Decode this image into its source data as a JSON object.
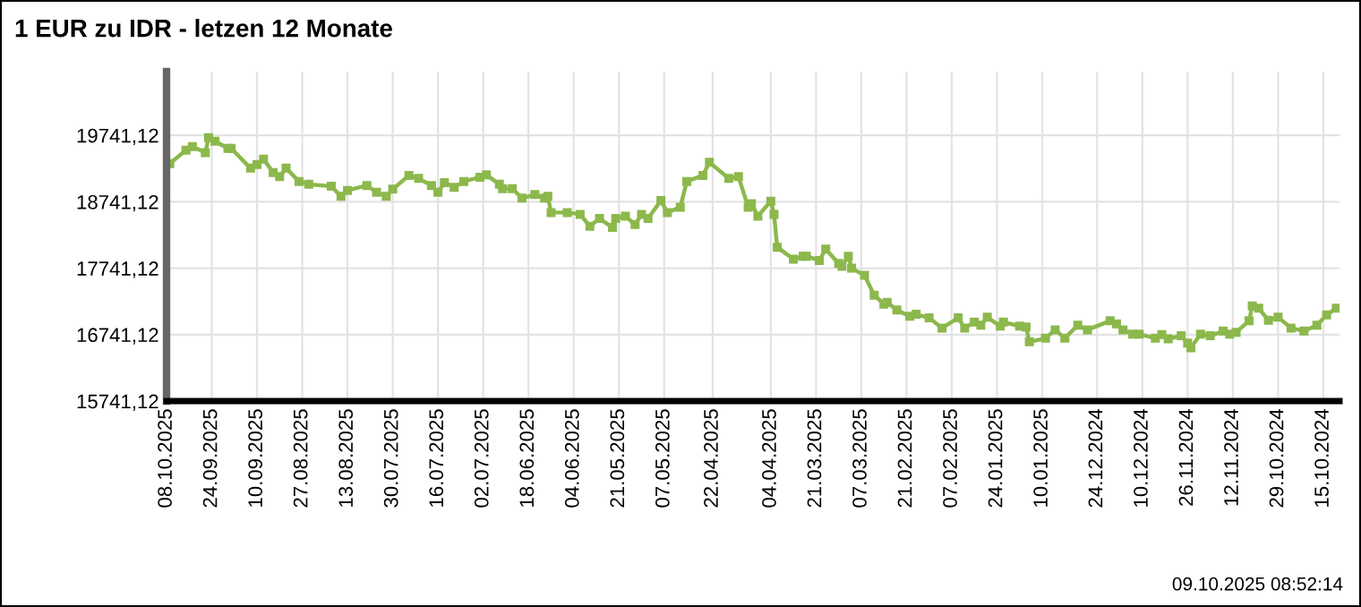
{
  "chart_data": {
    "type": "line",
    "title": "1 EUR zu IDR - letzen 12 Monate",
    "annotations": [
      "09.10.2025 08:52:14"
    ],
    "series": [
      {
        "color": "#8cb84c",
        "x": [
          "2025-10-07",
          "2025-10-02",
          "2025-09-30",
          "2025-09-26",
          "2025-09-25",
          "2025-09-23",
          "2025-09-19",
          "2025-09-18",
          "2025-09-12",
          "2025-09-10",
          "2025-09-08",
          "2025-09-05",
          "2025-09-03",
          "2025-09-01",
          "2025-08-28",
          "2025-08-25",
          "2025-08-18",
          "2025-08-15",
          "2025-08-13",
          "2025-08-07",
          "2025-08-04",
          "2025-08-01",
          "2025-07-30",
          "2025-07-25",
          "2025-07-22",
          "2025-07-18",
          "2025-07-16",
          "2025-07-14",
          "2025-07-11",
          "2025-07-08",
          "2025-07-03",
          "2025-07-01",
          "2025-06-27",
          "2025-06-26",
          "2025-06-23",
          "2025-06-20",
          "2025-06-16",
          "2025-06-13",
          "2025-06-12",
          "2025-06-11",
          "2025-06-06",
          "2025-06-02",
          "2025-05-30",
          "2025-05-27",
          "2025-05-23",
          "2025-05-22",
          "2025-05-19",
          "2025-05-16",
          "2025-05-14",
          "2025-05-12",
          "2025-05-08",
          "2025-05-06",
          "2025-05-02",
          "2025-04-30",
          "2025-04-25",
          "2025-04-23",
          "2025-04-17",
          "2025-04-14",
          "2025-04-11",
          "2025-04-10",
          "2025-04-08",
          "2025-04-04",
          "2025-04-03",
          "2025-04-02",
          "2025-03-28",
          "2025-03-25",
          "2025-03-24",
          "2025-03-20",
          "2025-03-18",
          "2025-03-14",
          "2025-03-13",
          "2025-03-11",
          "2025-03-10",
          "2025-03-06",
          "2025-03-03",
          "2025-02-28",
          "2025-02-27",
          "2025-02-24",
          "2025-02-20",
          "2025-02-18",
          "2025-02-14",
          "2025-02-10",
          "2025-02-05",
          "2025-02-03",
          "2025-01-31",
          "2025-01-29",
          "2025-01-27",
          "2025-01-23",
          "2025-01-22",
          "2025-01-17",
          "2025-01-15",
          "2025-01-14",
          "2025-01-09",
          "2025-01-06",
          "2025-01-03",
          "2024-12-30",
          "2024-12-27",
          "2024-12-20",
          "2024-12-18",
          "2024-12-16",
          "2024-12-13",
          "2024-12-11",
          "2024-12-06",
          "2024-12-04",
          "2024-12-02",
          "2024-11-28",
          "2024-11-26",
          "2024-11-25",
          "2024-11-22",
          "2024-11-19",
          "2024-11-15",
          "2024-11-13",
          "2024-11-11",
          "2024-11-07",
          "2024-11-06",
          "2024-11-04",
          "2024-11-01",
          "2024-10-29",
          "2024-10-25",
          "2024-10-21",
          "2024-10-17",
          "2024-10-14",
          "2024-10-11"
        ],
        "values": [
          19317,
          19517,
          19571,
          19479,
          19706,
          19652,
          19544,
          19544,
          19247,
          19301,
          19382,
          19182,
          19119,
          19247,
          19047,
          19004,
          18976,
          18822,
          18912,
          18986,
          18884,
          18822,
          18930,
          19138,
          19092,
          18986,
          18884,
          19030,
          18957,
          19047,
          19111,
          19146,
          19004,
          18939,
          18939,
          18795,
          18849,
          18795,
          18822,
          18579,
          18579,
          18552,
          18371,
          18489,
          18354,
          18489,
          18525,
          18398,
          18552,
          18489,
          18760,
          18579,
          18660,
          19047,
          19138,
          19336,
          19092,
          19119,
          18660,
          18714,
          18525,
          18749,
          18552,
          18057,
          17876,
          17922,
          17922,
          17857,
          18030,
          17814,
          17768,
          17922,
          17741,
          17633,
          17336,
          17200,
          17228,
          17111,
          17019,
          17047,
          16993,
          16841,
          16993,
          16841,
          16930,
          16884,
          17003,
          16868,
          16930,
          16868,
          16857,
          16633,
          16687,
          16814,
          16687,
          16884,
          16814,
          16949,
          16903,
          16814,
          16749,
          16749,
          16687,
          16741,
          16678,
          16724,
          16614,
          16544,
          16749,
          16724,
          16795,
          16749,
          16776,
          16949,
          17174,
          17139,
          16957,
          17003,
          16841,
          16795,
          16884,
          17038,
          17139
        ]
      }
    ],
    "xlim": [
      "2025-10-08",
      "2024-10-10"
    ],
    "xticks": [
      {
        "value": "2025-10-08",
        "label": "08.10.2025"
      },
      {
        "value": "2025-09-24",
        "label": "24.09.2025"
      },
      {
        "value": "2025-09-10",
        "label": "10.09.2025"
      },
      {
        "value": "2025-08-27",
        "label": "27.08.2025"
      },
      {
        "value": "2025-08-13",
        "label": "13.08.2025"
      },
      {
        "value": "2025-07-30",
        "label": "30.07.2025"
      },
      {
        "value": "2025-07-16",
        "label": "16.07.2025"
      },
      {
        "value": "2025-07-02",
        "label": "02.07.2025"
      },
      {
        "value": "2025-06-18",
        "label": "18.06.2025"
      },
      {
        "value": "2025-06-04",
        "label": "04.06.2025"
      },
      {
        "value": "2025-05-21",
        "label": "21.05.2025"
      },
      {
        "value": "2025-05-07",
        "label": "07.05.2025"
      },
      {
        "value": "2025-04-22",
        "label": "22.04.2025"
      },
      {
        "value": "2025-04-04",
        "label": "04.04.2025"
      },
      {
        "value": "2025-03-21",
        "label": "21.03.2025"
      },
      {
        "value": "2025-03-07",
        "label": "07.03.2025"
      },
      {
        "value": "2025-02-21",
        "label": "21.02.2025"
      },
      {
        "value": "2025-02-07",
        "label": "07.02.2025"
      },
      {
        "value": "2025-01-24",
        "label": "24.01.2025"
      },
      {
        "value": "2025-01-10",
        "label": "10.01.2025"
      },
      {
        "value": "2024-12-24",
        "label": "24.12.2024"
      },
      {
        "value": "2024-12-10",
        "label": "10.12.2024"
      },
      {
        "value": "2024-11-26",
        "label": "26.11.2024"
      },
      {
        "value": "2024-11-12",
        "label": "12.11.2024"
      },
      {
        "value": "2024-10-29",
        "label": "29.10.2024"
      },
      {
        "value": "2024-10-15",
        "label": "15.10.2024"
      }
    ],
    "ylim": [
      15741.12,
      20700
    ],
    "yticks": [
      {
        "value": 15741.12,
        "label": "15741,12"
      },
      {
        "value": 16741.12,
        "label": "16741,12"
      },
      {
        "value": 17741.12,
        "label": "17741,12"
      },
      {
        "value": 18741.12,
        "label": "18741,12"
      },
      {
        "value": 19741.12,
        "label": "19741,12"
      }
    ],
    "grid": true,
    "marker": "square",
    "line_style": "solid"
  }
}
